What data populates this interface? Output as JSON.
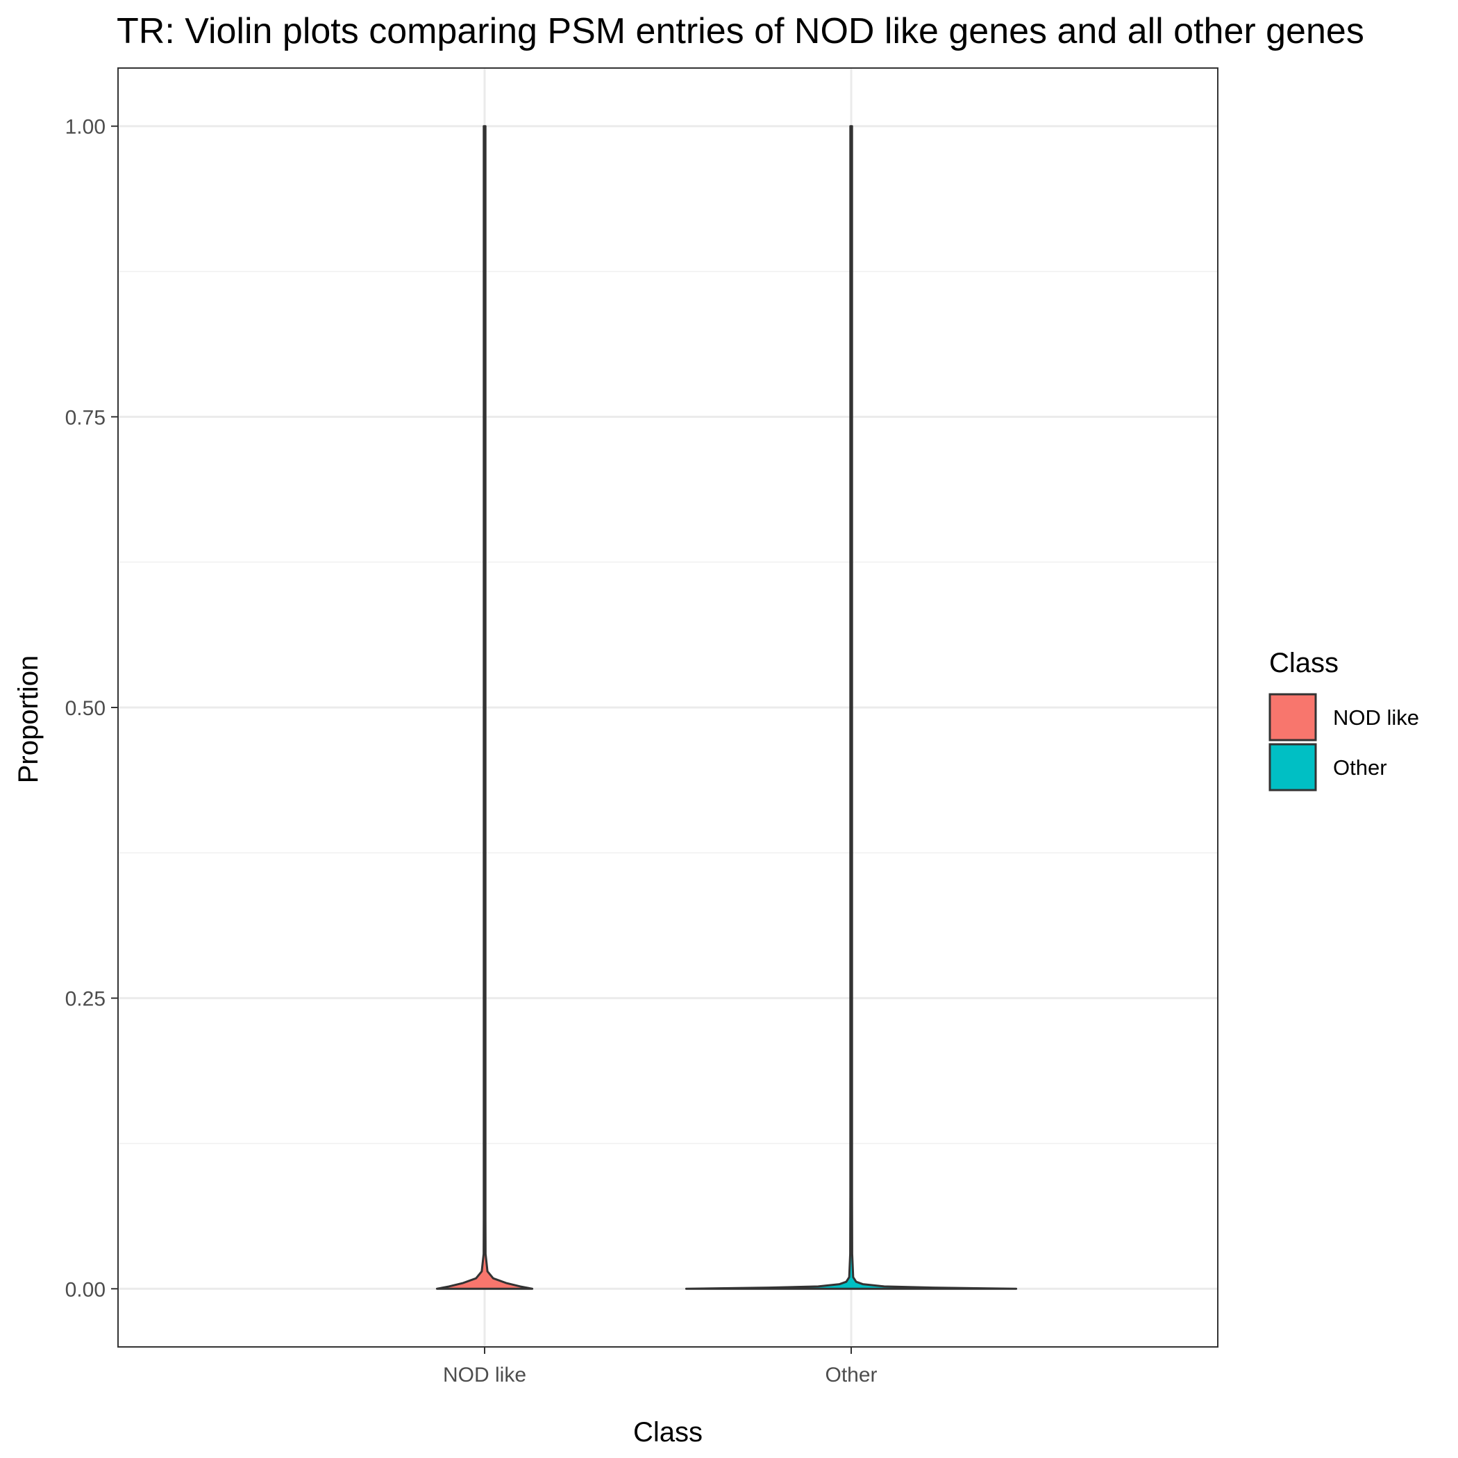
{
  "chart_data": {
    "type": "violin",
    "title": "TR: Violin plots comparing PSM entries of NOD like genes and all other genes",
    "xlabel": "Class",
    "ylabel": "Proportion",
    "categories": [
      "NOD like",
      "Other"
    ],
    "ylim": [
      -0.05,
      1.05
    ],
    "y_ticks": [
      0.0,
      0.25,
      0.5,
      0.75,
      1.0
    ],
    "y_tick_labels": [
      "0.00",
      "0.25",
      "0.50",
      "0.75",
      "1.00"
    ],
    "grid": true,
    "legend": {
      "title": "Class",
      "position": "right",
      "entries": [
        {
          "label": "NOD like",
          "color": "#F8766D"
        },
        {
          "label": "Other",
          "color": "#00BFC4"
        }
      ]
    },
    "series": [
      {
        "name": "NOD like",
        "color": "#F8766D",
        "y_range": [
          0.0,
          1.0
        ],
        "max_half_width": 0.13,
        "profile": [
          [
            0.0,
            1.0
          ],
          [
            0.002,
            0.75
          ],
          [
            0.005,
            0.45
          ],
          [
            0.009,
            0.18
          ],
          [
            0.015,
            0.06
          ],
          [
            0.03,
            0.02
          ],
          [
            0.06,
            0.01
          ],
          [
            0.2,
            0.004
          ],
          [
            1.0,
            0.003
          ]
        ]
      },
      {
        "name": "Other",
        "color": "#00BFC4",
        "y_range": [
          0.0,
          1.0
        ],
        "max_half_width": 0.45,
        "profile": [
          [
            0.0,
            1.0
          ],
          [
            0.001,
            0.5
          ],
          [
            0.002,
            0.2
          ],
          [
            0.004,
            0.07
          ],
          [
            0.006,
            0.03
          ],
          [
            0.01,
            0.012
          ],
          [
            0.03,
            0.006
          ],
          [
            0.08,
            0.003
          ],
          [
            1.0,
            0.002
          ]
        ]
      }
    ]
  }
}
